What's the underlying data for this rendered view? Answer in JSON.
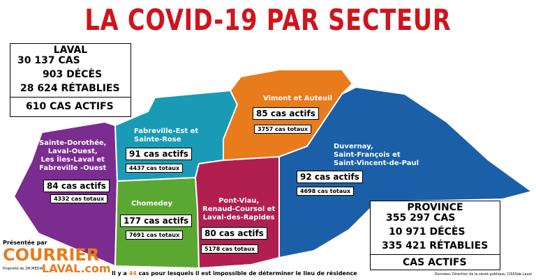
{
  "title": "LA COVID-19 PAR SECTEUR",
  "laval": {
    "heading": "LAVAL",
    "cases": "30 137 CAS",
    "deaths": "903 DÉCÈS",
    "recovered": "28 624 RÉTABLIES",
    "active": "610 CAS ACTIFS"
  },
  "province": {
    "heading": "PROVINCE",
    "cases": "355 297 CAS",
    "deaths": "10 971 DÉCÈS",
    "recovered": "335 421 RÉTABLIES",
    "active": "CAS ACTIFS"
  },
  "sectors": [
    {
      "name": [
        "Sainte-Dorothée,",
        "Laval-Ouest,",
        "Les Îles-Laval et",
        "Fabreville -Ouest"
      ],
      "active": "84 cas actifs",
      "total": "4332 cas totaux"
    },
    {
      "name": [
        "Fabreville-Est et",
        "Sainte-Rose"
      ],
      "active": "91 cas actifs",
      "total": "4437 cas totaux"
    },
    {
      "name": [
        "Chomedey"
      ],
      "active": "177 cas actifs",
      "total": "7691 cas totaux"
    },
    {
      "name": [
        "Pont-Viau,",
        "Renaud-Coursol et",
        "Laval-des-Rapides"
      ],
      "active": "80 cas actifs",
      "total": "5178 cas totaux"
    },
    {
      "name": [
        "Vimont et Auteuil"
      ],
      "active": "85 cas actifs",
      "total": "3757 cas totaux"
    },
    {
      "name": [
        "Duvernay,",
        "Saint-François et",
        "Saint-Vincent-de-Paul"
      ],
      "active": "92 cas actifs",
      "total": "4698 cas totaux"
    }
  ],
  "footnote": [
    "Il y a ",
    "44",
    " cas pour lesquels il est impossible de déterminer le lieu de résidence"
  ],
  "source": "Données: Direction de la santé publique, CISSSde Laval",
  "sponsor": {
    "label": "Présentée par",
    "brand_top": "COURRIER",
    "brand_bottom": "LAVAL.com",
    "tagline": "Propriété de 2M.MEDIA"
  }
}
